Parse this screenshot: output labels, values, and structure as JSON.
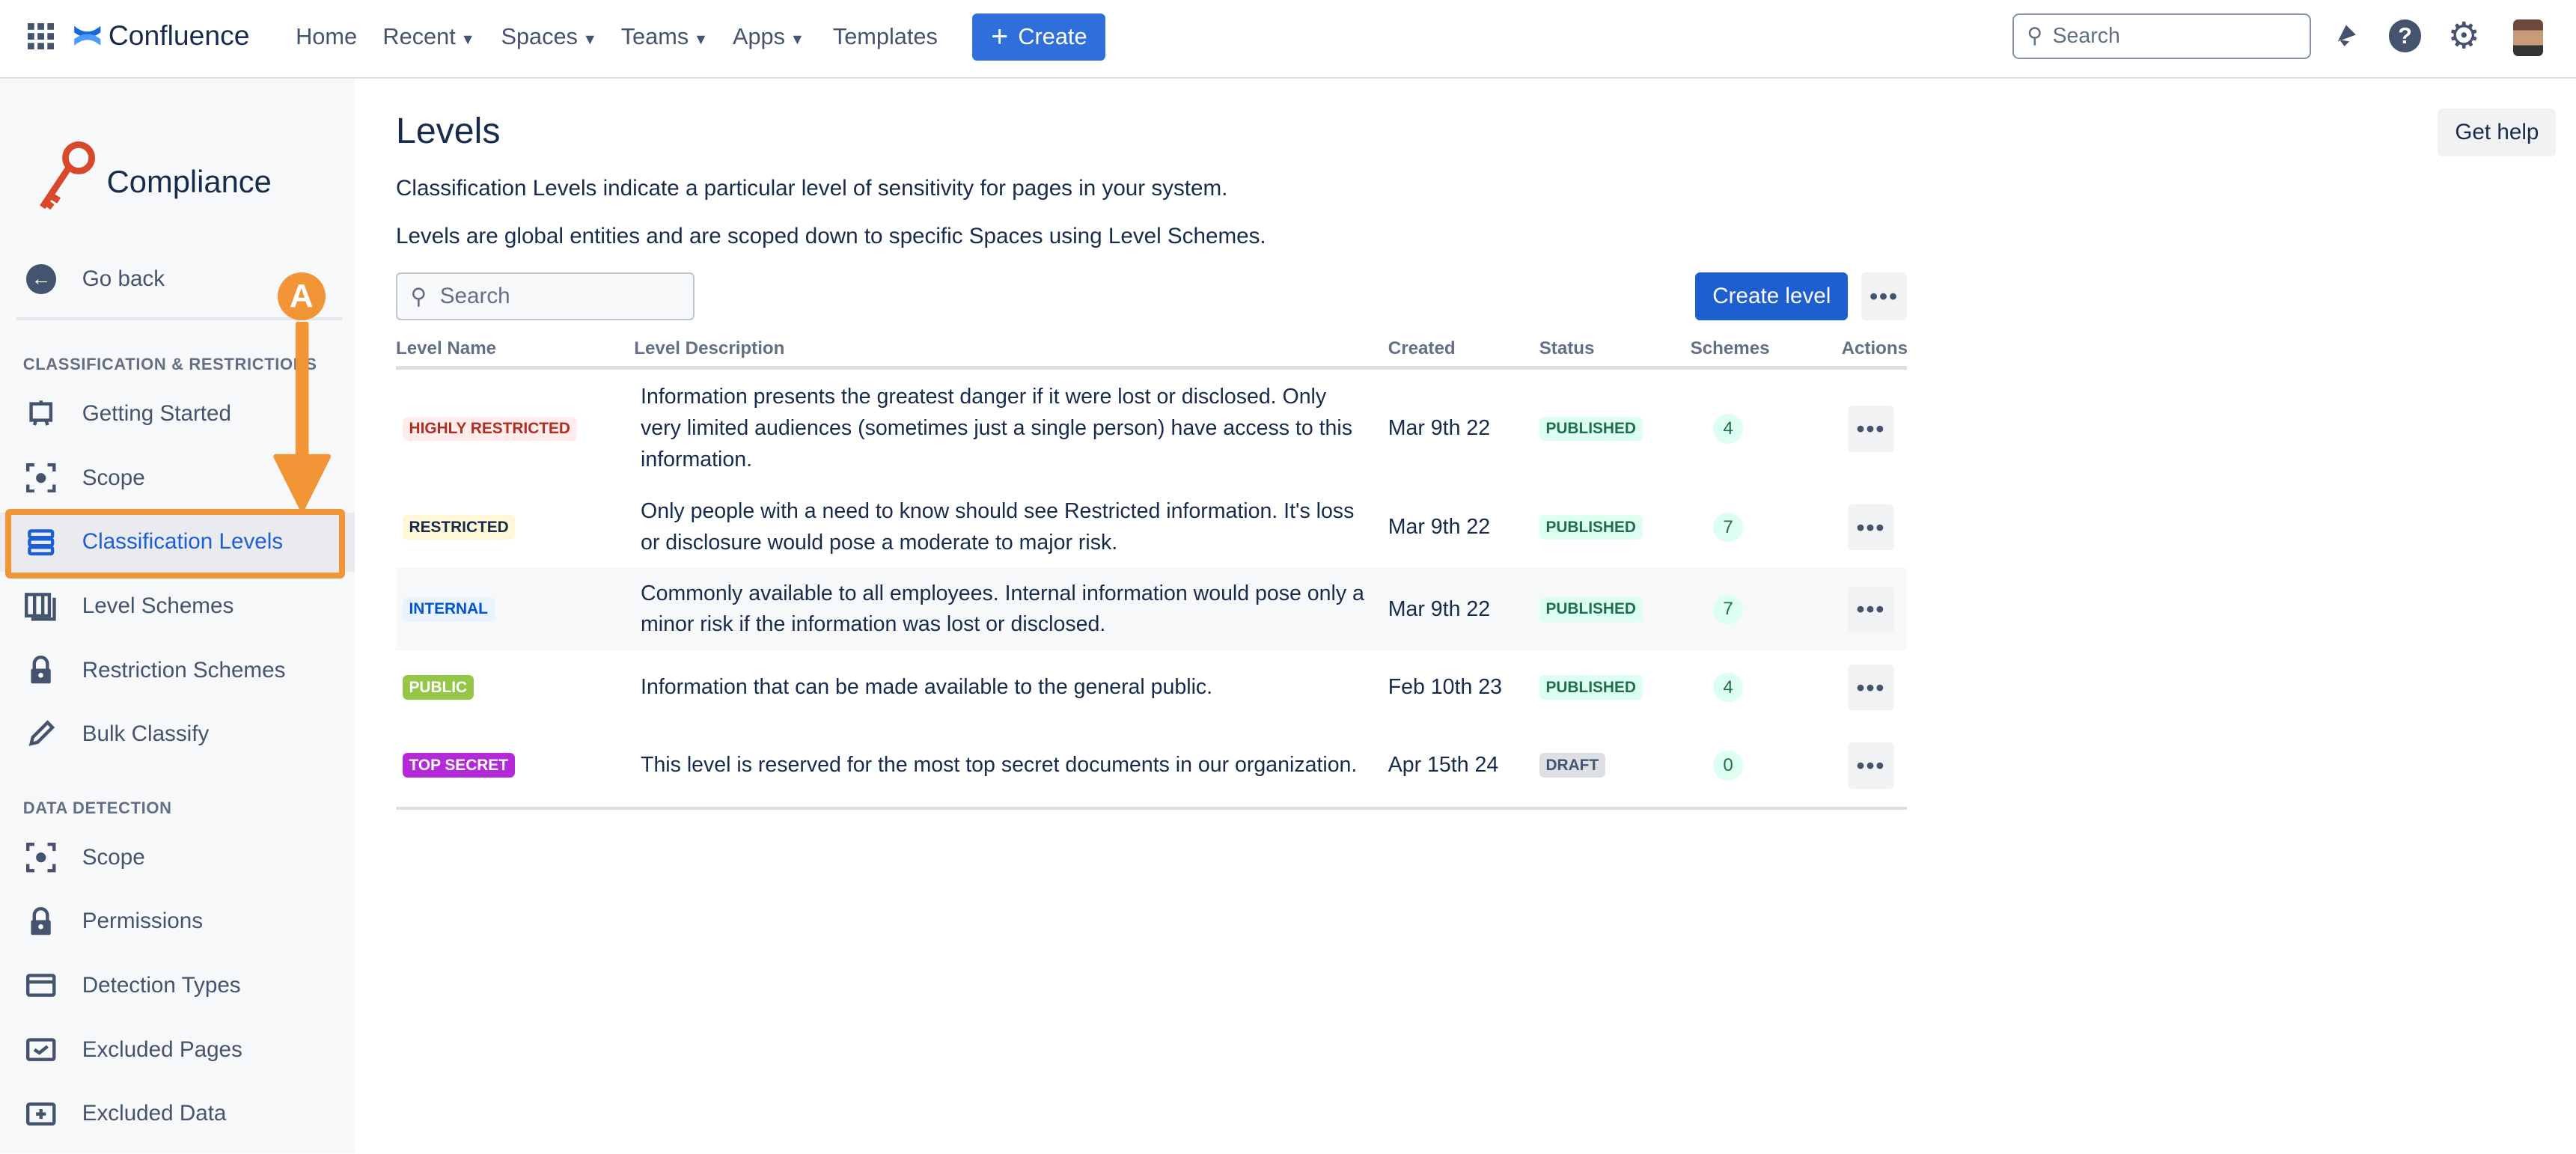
{
  "topbar": {
    "brand": "Confluence",
    "nav": [
      {
        "label": "Home"
      },
      {
        "label": "Recent",
        "dropdown": true
      },
      {
        "label": "Spaces",
        "dropdown": true
      },
      {
        "label": "Teams",
        "dropdown": true
      },
      {
        "label": "Apps",
        "dropdown": true
      },
      {
        "label": "Templates"
      }
    ],
    "create_label": "Create",
    "search_placeholder": "Search",
    "icons": [
      "apps-grid-icon",
      "notifications-icon",
      "help-icon",
      "settings-icon",
      "avatar"
    ]
  },
  "sidebar": {
    "app_name": "Compliance",
    "go_back": "Go back",
    "sections": [
      {
        "title": "CLASSIFICATION & RESTRICTIONS",
        "items": [
          {
            "label": "Getting Started",
            "icon": "easel-icon"
          },
          {
            "label": "Scope",
            "icon": "scope-icon"
          },
          {
            "label": "Classification Levels",
            "icon": "levels-icon",
            "active": true
          },
          {
            "label": "Level Schemes",
            "icon": "schemes-icon"
          },
          {
            "label": "Restriction Schemes",
            "icon": "lock-icon"
          },
          {
            "label": "Bulk Classify",
            "icon": "pencil-icon"
          }
        ]
      },
      {
        "title": "DATA DETECTION",
        "items": [
          {
            "label": "Scope",
            "icon": "scope-icon"
          },
          {
            "label": "Permissions",
            "icon": "lock-icon"
          },
          {
            "label": "Detection Types",
            "icon": "card-icon"
          },
          {
            "label": "Excluded Pages",
            "icon": "excluded-pages-icon"
          },
          {
            "label": "Excluded Data",
            "icon": "excluded-data-icon"
          }
        ]
      }
    ]
  },
  "main": {
    "title": "Levels",
    "get_help": "Get help",
    "intro1": "Classification Levels indicate a particular level of sensitivity for pages in your system.",
    "intro2": "Levels are global entities and are scoped down to specific Spaces using Level Schemes.",
    "search_placeholder": "Search",
    "create_level": "Create level",
    "columns": [
      "Level Name",
      "Level Description",
      "Created",
      "Status",
      "Schemes",
      "Actions"
    ],
    "rows": [
      {
        "name": "HIGHLY RESTRICTED",
        "color_bg": "#ffeceb",
        "color_fg": "#ae2e24",
        "description": "Information presents the greatest danger if it were lost or disclosed. Only very limited audiences (sometimes just a single person) have access to this information.",
        "created": "Mar 9th 22",
        "status": "PUBLISHED",
        "schemes": "4"
      },
      {
        "name": "RESTRICTED",
        "color_bg": "#fff7d6",
        "color_fg": "#172b4d",
        "description": "Only people with a need to know should see Restricted information. It's loss or disclosure would pose a moderate to major risk.",
        "created": "Mar 9th 22",
        "status": "PUBLISHED",
        "schemes": "7"
      },
      {
        "name": "INTERNAL",
        "color_bg": "#e9f2ff",
        "color_fg": "#0055cc",
        "description": "Commonly available to all employees. Internal information would pose only a minor risk if the information was lost or disclosed.",
        "created": "Mar 9th 22",
        "status": "PUBLISHED",
        "schemes": "7"
      },
      {
        "name": "PUBLIC",
        "color_bg": "#94c748",
        "color_fg": "#ffffff",
        "description": "Information that can be made available to the general public.",
        "created": "Feb 10th 23",
        "status": "PUBLISHED",
        "schemes": "4"
      },
      {
        "name": "TOP SECRET",
        "color_bg": "#b42ad8",
        "color_fg": "#ffffff",
        "description": "This level is reserved for the most top secret documents in our organization.",
        "created": "Apr 15th 24",
        "status": "DRAFT",
        "schemes": "0"
      }
    ]
  },
  "annotation": {
    "marker": "A",
    "color": "#f19537"
  }
}
